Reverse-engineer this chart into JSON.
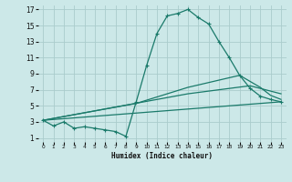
{
  "xlabel": "Humidex (Indice chaleur)",
  "bg_color": "#cce8e8",
  "grid_color": "#aacccc",
  "line_color": "#1a7a6a",
  "xlim": [
    -0.5,
    23.5
  ],
  "ylim": [
    0.5,
    17.5
  ],
  "xticks": [
    0,
    1,
    2,
    3,
    4,
    5,
    6,
    7,
    8,
    9,
    10,
    11,
    12,
    13,
    14,
    15,
    16,
    17,
    18,
    19,
    20,
    21,
    22,
    23
  ],
  "yticks": [
    1,
    3,
    5,
    7,
    9,
    11,
    13,
    15,
    17
  ],
  "line1_x": [
    0,
    1,
    2,
    3,
    4,
    5,
    6,
    7,
    8,
    9,
    10,
    11,
    12,
    13,
    14,
    15,
    16,
    17,
    18,
    19,
    20,
    21,
    22,
    23
  ],
  "line1_y": [
    3.2,
    2.5,
    3.0,
    2.2,
    2.4,
    2.2,
    2.0,
    1.8,
    1.2,
    5.5,
    10.0,
    14.0,
    16.2,
    16.5,
    17.0,
    16.0,
    15.2,
    13.0,
    11.0,
    8.8,
    7.2,
    6.2,
    5.8,
    5.5
  ],
  "line2_x": [
    0,
    9,
    14,
    19,
    21,
    22,
    23
  ],
  "line2_y": [
    3.2,
    5.3,
    7.3,
    8.8,
    7.3,
    6.3,
    5.8
  ],
  "line3_x": [
    0,
    14,
    20,
    23
  ],
  "line3_y": [
    3.2,
    6.5,
    7.5,
    6.5
  ],
  "line4_x": [
    0,
    23
  ],
  "line4_y": [
    3.2,
    5.5
  ]
}
